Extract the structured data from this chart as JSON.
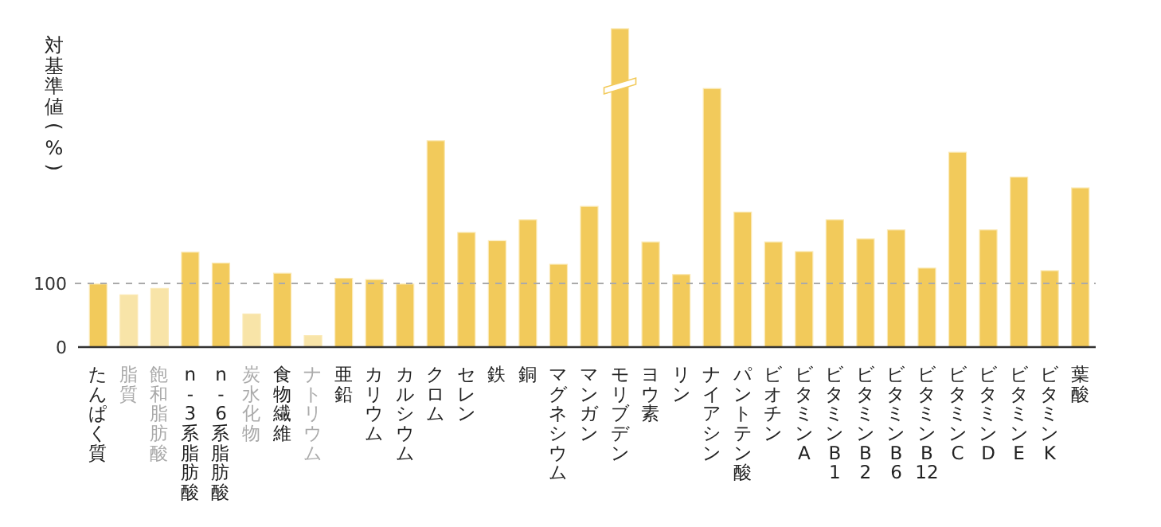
{
  "chart_data": {
    "type": "bar",
    "ylabel": "対基準値(%)",
    "categories": [
      "たんぱく質",
      "脂質",
      "飽和脂肪酸",
      "n-3系脂肪酸",
      "n-6系脂肪酸",
      "炭水化物",
      "食物繊維",
      "ナトリウム",
      "亜鉛",
      "カリウム",
      "カルシウム",
      "クロム",
      "セレン",
      "鉄",
      "銅",
      "マグネシウム",
      "マンガン",
      "モリブデン",
      "ヨウ素",
      "リン",
      "ナイアシン",
      "パントテン酸",
      "ビオチン",
      "ビタミンA",
      "ビタミンB1",
      "ビタミンB2",
      "ビタミンB6",
      "ビタミンB12",
      "ビタミンC",
      "ビタミンD",
      "ビタミンE",
      "ビタミンK",
      "葉酸"
    ],
    "values": [
      99,
      82,
      92,
      149,
      132,
      52,
      116,
      18,
      108,
      106,
      99,
      324,
      180,
      167,
      200,
      130,
      221,
      500,
      165,
      114,
      406,
      212,
      165,
      150,
      200,
      170,
      184,
      124,
      306,
      184,
      267,
      120,
      250
    ],
    "colors": [
      "#f2ca5b",
      "#f8e4a8",
      "#f8e4a8",
      "#f2ca5b",
      "#f2ca5b",
      "#f8e4a8",
      "#f2ca5b",
      "#f8e4a8",
      "#f2ca5b",
      "#f2ca5b",
      "#f2ca5b",
      "#f2ca5b",
      "#f2ca5b",
      "#f2ca5b",
      "#f2ca5b",
      "#f2ca5b",
      "#f2ca5b",
      "#f2ca5b",
      "#f2ca5b",
      "#f2ca5b",
      "#f2ca5b",
      "#f2ca5b",
      "#f2ca5b",
      "#f2ca5b",
      "#f2ca5b",
      "#f2ca5b",
      "#f2ca5b",
      "#f2ca5b",
      "#f2ca5b",
      "#f2ca5b",
      "#f2ca5b",
      "#f2ca5b",
      "#f2ca5b"
    ],
    "ylim": [
      0,
      500
    ],
    "yticks": [
      0,
      100
    ],
    "ref_lines": [
      {
        "axis": "y",
        "value": 100,
        "color": "#aaaaaa",
        "line_style": "dashed"
      }
    ],
    "grid": false
  }
}
